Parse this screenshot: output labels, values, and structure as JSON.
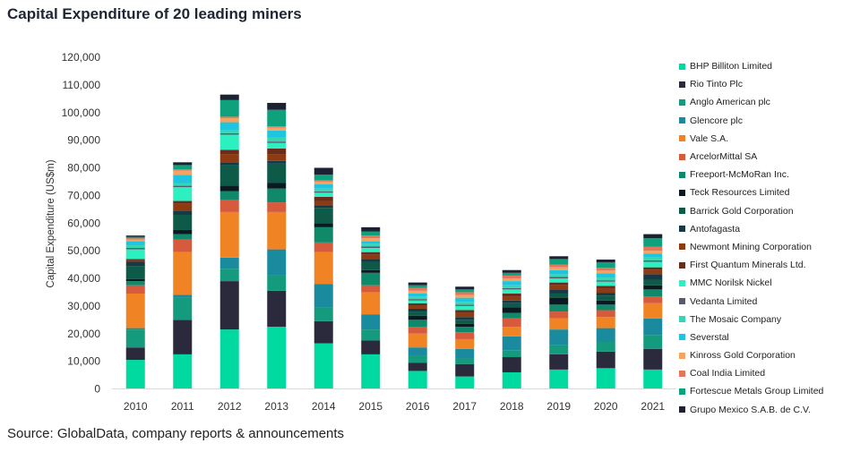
{
  "title": "Capital Expenditure of 20 leading miners",
  "source": "Source: GlobalData, company reports & announcements",
  "chart_data": {
    "type": "bar",
    "stacked": true,
    "ylabel": "Capital Expenditure (US$m)",
    "xlabel": "",
    "ylim": [
      0,
      120000
    ],
    "yticks": [
      0,
      10000,
      20000,
      30000,
      40000,
      50000,
      60000,
      70000,
      80000,
      90000,
      100000,
      110000,
      120000
    ],
    "ytick_labels": [
      "0",
      "10,000",
      "20,000",
      "30,000",
      "40,000",
      "50,000",
      "60,000",
      "70,000",
      "80,000",
      "90,000",
      "100,000",
      "110,000",
      "120,000"
    ],
    "grid": false,
    "legend_position": "right",
    "categories": [
      "2010",
      "2011",
      "2012",
      "2013",
      "2014",
      "2015",
      "2016",
      "2017",
      "2018",
      "2019",
      "2020",
      "2021"
    ],
    "series": [
      {
        "name": "BHP Billiton Limited",
        "color": "#00d9a0",
        "values": [
          10500,
          12500,
          21500,
          22500,
          16500,
          12500,
          6500,
          4500,
          6000,
          7000,
          7500,
          7000
        ]
      },
      {
        "name": "Rio Tinto Plc",
        "color": "#2b2a3d",
        "values": [
          4500,
          12500,
          17500,
          13000,
          8000,
          5000,
          3000,
          4500,
          5500,
          5500,
          6000,
          7500
        ]
      },
      {
        "name": "Anglo American plc",
        "color": "#149b7d",
        "values": [
          6500,
          8000,
          4500,
          5500,
          5000,
          4000,
          2500,
          2000,
          2500,
          3500,
          3500,
          5000
        ]
      },
      {
        "name": "Glencore plc",
        "color": "#1a8a9e",
        "values": [
          500,
          1000,
          4000,
          9500,
          8500,
          5500,
          3000,
          3500,
          5000,
          5500,
          5000,
          6000
        ]
      },
      {
        "name": "Vale S.A.",
        "color": "#f08425",
        "values": [
          12500,
          15500,
          16500,
          13500,
          11500,
          8000,
          5000,
          3500,
          3500,
          4000,
          4000,
          5500
        ]
      },
      {
        "name": "ArcelorMittal SA",
        "color": "#d75a3c",
        "values": [
          3000,
          4500,
          4500,
          3500,
          3500,
          2500,
          2500,
          2500,
          3000,
          2500,
          2500,
          2500
        ]
      },
      {
        "name": "Freeport-McMoRan Inc.",
        "color": "#10896a",
        "values": [
          1500,
          2000,
          3000,
          5000,
          5500,
          4500,
          2500,
          2000,
          2000,
          2500,
          2000,
          2500
        ]
      },
      {
        "name": "Teck Resources Limited",
        "color": "#0b1a20",
        "values": [
          700,
          1500,
          2000,
          2000,
          1500,
          1000,
          1500,
          1000,
          2000,
          2500,
          1500,
          1500
        ]
      },
      {
        "name": "Barrick Gold Corporation",
        "color": "#0d5a48",
        "values": [
          4800,
          5500,
          7500,
          7000,
          5500,
          3000,
          1500,
          1500,
          1500,
          1500,
          1800,
          2000
        ]
      },
      {
        "name": "Antofagasta",
        "color": "#153a46",
        "values": [
          1500,
          1500,
          1000,
          1000,
          1000,
          1000,
          1000,
          1000,
          1000,
          1500,
          1000,
          2000
        ]
      },
      {
        "name": "Newmont Mining Corporation",
        "color": "#8c3b12",
        "values": [
          500,
          2500,
          3000,
          2500,
          1500,
          1500,
          1000,
          1500,
          1500,
          1500,
          1500,
          1500
        ]
      },
      {
        "name": "First Quantum Minerals Ltd.",
        "color": "#6b2b1d",
        "values": [
          500,
          1000,
          1500,
          2000,
          1500,
          1000,
          1000,
          1000,
          1000,
          1000,
          1000,
          1000
        ]
      },
      {
        "name": "MMC Norilsk Nickel",
        "color": "#2cf0c0",
        "values": [
          3500,
          5000,
          5500,
          2000,
          1500,
          1500,
          1000,
          1500,
          1500,
          1500,
          1500,
          2000
        ]
      },
      {
        "name": "Vedanta Limited",
        "color": "#555a6e",
        "values": [
          500,
          500,
          500,
          500,
          500,
          500,
          500,
          500,
          500,
          500,
          500,
          500
        ]
      },
      {
        "name": "The Mosaic Company",
        "color": "#36d6b3",
        "values": [
          1000,
          1000,
          1000,
          1500,
          1000,
          1000,
          1000,
          1000,
          1000,
          1000,
          1000,
          1000
        ]
      },
      {
        "name": "Severstal",
        "color": "#1dc5e0",
        "values": [
          1500,
          3000,
          3000,
          2500,
          1500,
          1000,
          1000,
          1500,
          1500,
          1500,
          1500,
          1500
        ]
      },
      {
        "name": "Kinross Gold Corporation",
        "color": "#f4a461",
        "values": [
          500,
          1500,
          1500,
          1000,
          1000,
          1000,
          1000,
          1000,
          1000,
          1000,
          1000,
          1000
        ]
      },
      {
        "name": "Coal India Limited",
        "color": "#e3765c",
        "values": [
          500,
          500,
          500,
          500,
          500,
          1000,
          1000,
          1000,
          1000,
          1000,
          1000,
          1500
        ]
      },
      {
        "name": "Fortescue Metals Group Limited",
        "color": "#0fa07c",
        "values": [
          500,
          1500,
          6000,
          6000,
          2000,
          1500,
          1000,
          1000,
          1000,
          2000,
          2000,
          3000
        ]
      },
      {
        "name": "Grupo Mexico S.A.B. de C.V.",
        "color": "#1d2233",
        "values": [
          500,
          1000,
          2000,
          2500,
          2500,
          1500,
          1000,
          1000,
          1000,
          1000,
          1000,
          1500
        ]
      }
    ]
  }
}
